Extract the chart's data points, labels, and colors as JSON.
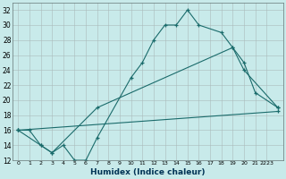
{
  "xlabel": "Humidex (Indice chaleur)",
  "ylabel": "",
  "background_color": "#c8eaea",
  "line_color": "#1a6b6b",
  "xlim": [
    -0.5,
    23.5
  ],
  "ylim": [
    12,
    33
  ],
  "xtick_labels": [
    "0",
    "1",
    "2",
    "3",
    "4",
    "5",
    "6",
    "7",
    "8",
    "9",
    "10",
    "11",
    "12",
    "13",
    "14",
    "15",
    "16",
    "17",
    "18",
    "19",
    "20",
    "21",
    "2223"
  ],
  "xtick_positions": [
    0,
    1,
    2,
    3,
    4,
    5,
    6,
    7,
    8,
    9,
    10,
    11,
    12,
    13,
    14,
    15,
    16,
    17,
    18,
    19,
    20,
    21,
    22
  ],
  "ytick_labels": [
    "12",
    "14",
    "16",
    "18",
    "20",
    "22",
    "24",
    "26",
    "28",
    "30",
    "32"
  ],
  "ytick_positions": [
    12,
    14,
    16,
    18,
    20,
    22,
    24,
    26,
    28,
    30,
    32
  ],
  "series1_x": [
    0,
    1,
    2,
    3,
    4,
    5,
    6,
    7,
    10,
    11,
    12,
    13,
    14,
    15,
    16,
    18,
    19,
    20,
    21,
    23
  ],
  "series1_y": [
    16,
    16,
    14,
    13,
    14,
    12,
    12,
    15,
    23,
    25,
    28,
    30,
    30,
    32,
    30,
    29,
    27,
    25,
    21,
    19
  ],
  "series2_x": [
    0,
    2,
    3,
    7,
    19,
    20,
    23
  ],
  "series2_y": [
    16,
    14,
    13,
    19,
    27,
    24,
    19
  ]
}
